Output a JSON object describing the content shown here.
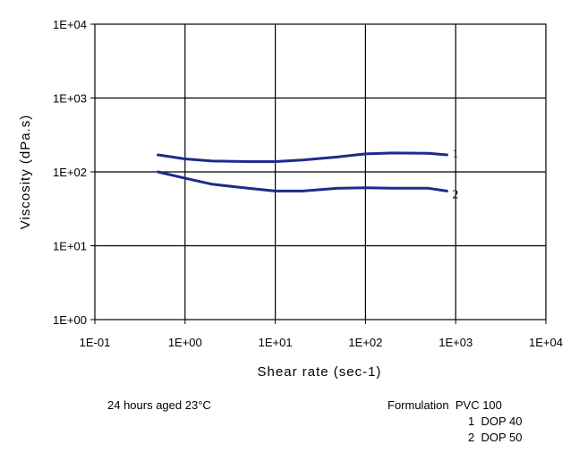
{
  "chart_data": {
    "type": "line",
    "xscale": "log",
    "yscale": "log",
    "xlim": [
      0.1,
      10000
    ],
    "ylim": [
      1,
      10000
    ],
    "xlabel": "Shear rate (sec-1)",
    "ylabel": "Viscosity (dPa.s)",
    "x_tick_labels": [
      "1E-01",
      "1E+00",
      "1E+01",
      "1E+02",
      "1E+03",
      "1E+04"
    ],
    "y_tick_labels": [
      "1E+00",
      "1E+01",
      "1E+02",
      "1E+03",
      "1E+04"
    ],
    "grid": true,
    "series": [
      {
        "name": "1",
        "color": "#1f2a8c",
        "x": [
          0.5,
          1,
          2,
          5,
          10,
          20,
          50,
          100,
          200,
          500,
          800
        ],
        "y": [
          170,
          150,
          140,
          138,
          138,
          145,
          160,
          175,
          180,
          178,
          170
        ]
      },
      {
        "name": "2",
        "color": "#1f2a8c",
        "x": [
          0.5,
          1,
          2,
          5,
          10,
          20,
          50,
          100,
          200,
          500,
          800
        ],
        "y": [
          100,
          82,
          68,
          60,
          55,
          55,
          60,
          61,
          60,
          60,
          55
        ]
      }
    ]
  },
  "notes": {
    "left": "24 hours aged 23°C",
    "right_line1": "Formulation  PVC 100",
    "right_line2": "1  DOP 40",
    "right_line3": "2  DOP 50"
  }
}
